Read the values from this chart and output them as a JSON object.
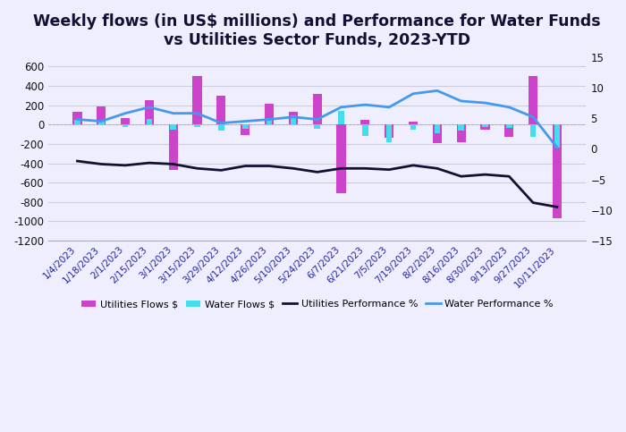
{
  "title": "Weekly flows (in US$ millions) and Performance for Water Funds\nvs Utilities Sector Funds, 2023-YTD",
  "x_labels": [
    "1/4/2023",
    "1/18/2023",
    "2/1/2023",
    "2/15/2023",
    "3/1/2023",
    "3/15/2023",
    "3/29/2023",
    "4/12/2023",
    "4/26/2023",
    "5/10/2023",
    "5/24/2023",
    "6/7/2023",
    "6/21/2023",
    "7/5/2023",
    "7/19/2023",
    "8/2/2023",
    "8/16/2023",
    "8/30/2023",
    "9/13/2023",
    "9/27/2023",
    "10/11/2023"
  ],
  "utilities_flows": [
    130,
    185,
    65,
    250,
    -470,
    500,
    295,
    -105,
    220,
    135,
    320,
    -710,
    45,
    -140,
    30,
    -190,
    -185,
    -55,
    -125,
    500,
    -970
  ],
  "water_flows": [
    45,
    30,
    -25,
    55,
    -55,
    -25,
    -65,
    -45,
    70,
    95,
    -45,
    145,
    -115,
    -180,
    -55,
    -90,
    -60,
    -25,
    -30,
    -125,
    -240
  ],
  "utilities_perf": [
    -2.0,
    -2.5,
    -2.7,
    -2.3,
    -2.5,
    -3.2,
    -3.5,
    -2.8,
    -2.8,
    -3.2,
    -3.8,
    -3.2,
    -3.2,
    -3.4,
    -2.7,
    -3.2,
    -4.5,
    -4.2,
    -4.5,
    -8.8,
    -9.5
  ],
  "water_perf": [
    4.8,
    4.5,
    5.8,
    6.8,
    5.8,
    5.8,
    4.2,
    4.5,
    4.8,
    5.2,
    4.8,
    6.8,
    7.2,
    6.8,
    9.0,
    9.5,
    7.8,
    7.5,
    6.8,
    5.2,
    0.2
  ],
  "utilities_bar_color": "#cc44cc",
  "water_bar_color": "#44ddee",
  "utilities_line_color": "#111133",
  "water_line_color": "#4499ee",
  "background_color": "#eeeeff",
  "grid_color": "#ccccdd",
  "left_ylim": [
    -1200,
    700
  ],
  "left_yticks": [
    -1200,
    -1000,
    -800,
    -600,
    -400,
    -200,
    0,
    200,
    400,
    600
  ],
  "right_ylim": [
    -15,
    15
  ],
  "right_yticks": [
    -15,
    -10,
    -5,
    0,
    5,
    10,
    15
  ],
  "title_fontsize": 12.5,
  "tick_fontsize": 7.5
}
